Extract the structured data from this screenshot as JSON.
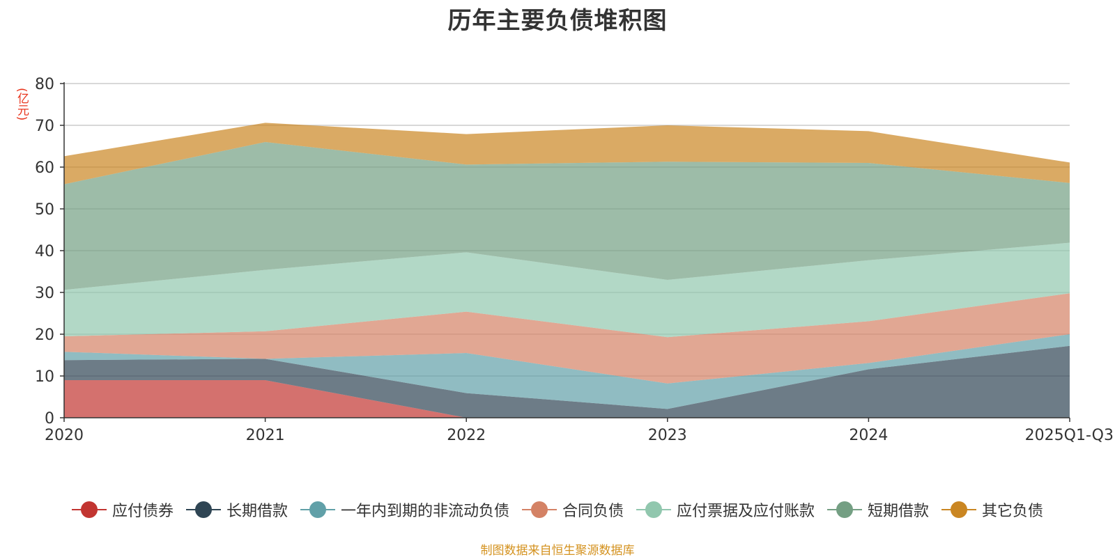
{
  "chart_data": {
    "type": "area",
    "stacked": true,
    "title": "历年主要负债堆积图",
    "ylabel": "(亿元)",
    "xlabel": "",
    "categories": [
      "2020",
      "2021",
      "2022",
      "2023",
      "2024",
      "2025Q1-Q3"
    ],
    "ylim": [
      0,
      80
    ],
    "yticks": [
      0,
      10,
      20,
      30,
      40,
      50,
      60,
      70,
      80
    ],
    "grid": true,
    "legend_position": "bottom",
    "series": [
      {
        "name": "应付债券",
        "color": "#c23531",
        "values": [
          9.0,
          9.0,
          0.0,
          0.0,
          0.0,
          0.0
        ]
      },
      {
        "name": "长期借款",
        "color": "#2f4554",
        "values": [
          4.8,
          5.1,
          5.9,
          2.1,
          11.6,
          17.2
        ]
      },
      {
        "name": "一年内到期的非流动负债",
        "color": "#61a0a8",
        "values": [
          2.0,
          0.0,
          9.6,
          6.1,
          1.5,
          2.8
        ]
      },
      {
        "name": "合同负债",
        "color": "#d48265",
        "values": [
          3.7,
          6.6,
          9.9,
          11.1,
          10.0,
          9.8
        ]
      },
      {
        "name": "应付票据及应付账款",
        "color": "#91c7ae",
        "values": [
          11.1,
          14.7,
          14.2,
          13.7,
          14.6,
          12.1
        ]
      },
      {
        "name": "短期借款",
        "color": "#749f83",
        "values": [
          25.3,
          30.6,
          21.0,
          28.3,
          23.3,
          14.3
        ]
      },
      {
        "name": "其它负债",
        "color": "#ca8622",
        "values": [
          6.7,
          4.6,
          7.3,
          8.7,
          7.6,
          4.9
        ]
      }
    ]
  },
  "source_note": "制图数据来自恒生聚源数据库"
}
